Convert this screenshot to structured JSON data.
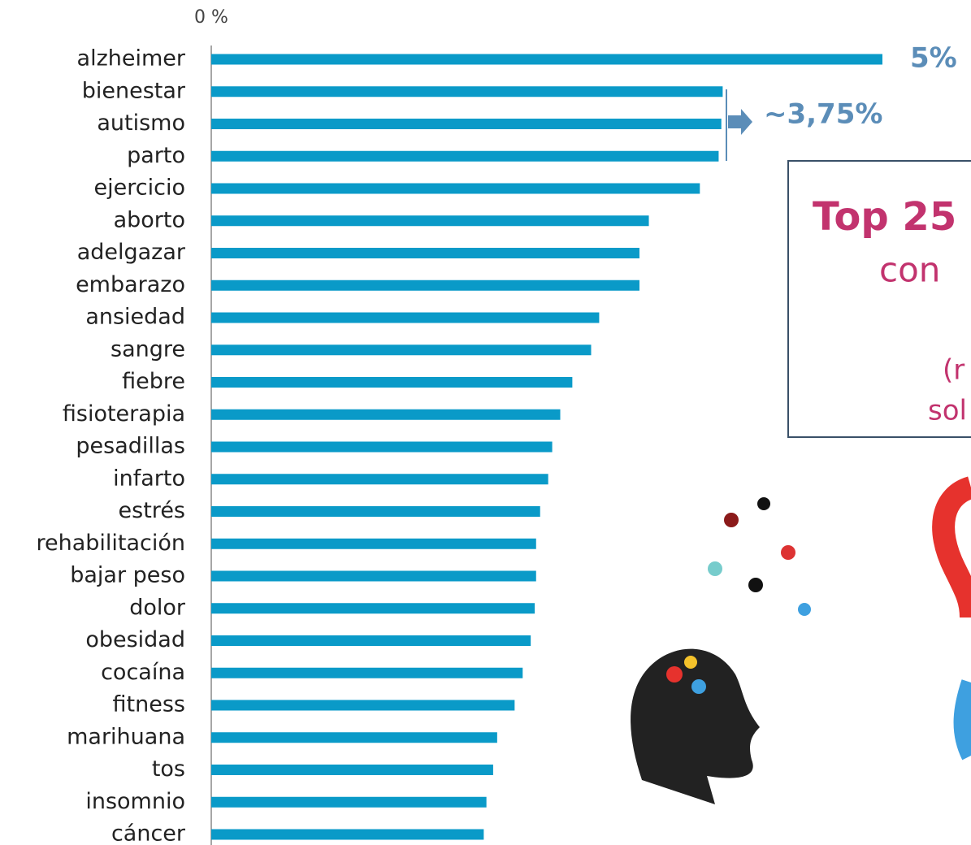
{
  "chart_data": {
    "type": "hbar",
    "categories": [
      "alzheimer",
      "bienestar",
      "autismo",
      "parto",
      "ejercicio",
      "aborto",
      "adelgazar",
      "embarazo",
      "ansiedad",
      "sangre",
      "fiebre",
      "fisioterapia",
      "pesadillas",
      "infarto",
      "estrés",
      "rehabilitación",
      "bajar peso",
      "dolor",
      "obesidad",
      "cocaína",
      "fitness",
      "marihuana",
      "tos",
      "insomnio",
      "cáncer"
    ],
    "values": [
      5.0,
      3.81,
      3.8,
      3.78,
      3.64,
      3.26,
      3.19,
      3.19,
      2.89,
      2.83,
      2.69,
      2.6,
      2.54,
      2.51,
      2.45,
      2.42,
      2.42,
      2.41,
      2.38,
      2.32,
      2.26,
      2.13,
      2.1,
      2.05,
      2.03
    ],
    "value_labels": [
      "5%",
      null,
      null,
      null,
      null,
      null,
      null,
      null,
      null,
      null,
      null,
      null,
      null,
      null,
      null,
      null,
      null,
      null,
      null,
      null,
      null,
      null,
      null,
      null,
      null
    ],
    "color": "#0a9ac8",
    "xlim": [
      0,
      5.66
    ],
    "xticks": [
      {
        "value": 0,
        "label": "0 %"
      }
    ],
    "annotations": [
      "~3,75%"
    ],
    "text_box": [
      "Top 25",
      "con",
      "(r",
      "sol"
    ]
  }
}
